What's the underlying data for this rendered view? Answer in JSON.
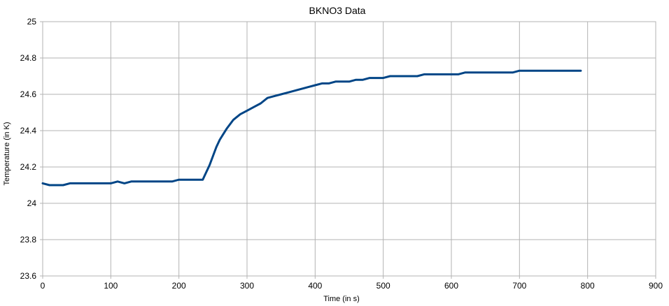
{
  "chart_data": {
    "type": "line",
    "title": "BKNO3 Data",
    "xlabel": "Time (in s)",
    "ylabel": "Temperature (in K)",
    "xlim": [
      0,
      900
    ],
    "ylim": [
      23.6,
      25
    ],
    "xticks": [
      0,
      100,
      200,
      300,
      400,
      500,
      600,
      700,
      800,
      900
    ],
    "yticks": [
      23.6,
      23.8,
      24,
      24.2,
      24.4,
      24.6,
      24.8,
      25
    ],
    "ytick_labels": [
      "23.6",
      "23.8",
      "24",
      "24.2",
      "24.4",
      "24.6",
      "24.8",
      "25"
    ],
    "grid": true,
    "legend": "none",
    "line_color": "#004586",
    "series": [
      {
        "x": [
          0,
          10,
          20,
          30,
          40,
          50,
          60,
          70,
          80,
          90,
          100,
          110,
          120,
          130,
          140,
          150,
          160,
          170,
          180,
          190,
          200,
          210,
          220,
          230,
          235,
          240,
          245,
          250,
          255,
          260,
          265,
          270,
          280,
          290,
          300,
          310,
          320,
          330,
          340,
          350,
          360,
          370,
          380,
          390,
          400,
          410,
          420,
          430,
          440,
          450,
          460,
          470,
          480,
          490,
          500,
          510,
          520,
          530,
          540,
          550,
          560,
          570,
          580,
          590,
          600,
          610,
          620,
          630,
          640,
          650,
          660,
          670,
          680,
          690,
          700,
          710,
          720,
          730,
          740,
          750,
          760,
          770,
          780,
          790
        ],
        "y": [
          24.11,
          24.1,
          24.1,
          24.1,
          24.11,
          24.11,
          24.11,
          24.11,
          24.11,
          24.11,
          24.11,
          24.12,
          24.11,
          24.12,
          24.12,
          24.12,
          24.12,
          24.12,
          24.12,
          24.12,
          24.13,
          24.13,
          24.13,
          24.13,
          24.13,
          24.17,
          24.21,
          24.26,
          24.31,
          24.35,
          24.38,
          24.41,
          24.46,
          24.49,
          24.51,
          24.53,
          24.55,
          24.58,
          24.59,
          24.6,
          24.61,
          24.62,
          24.63,
          24.64,
          24.65,
          24.66,
          24.66,
          24.67,
          24.67,
          24.67,
          24.68,
          24.68,
          24.69,
          24.69,
          24.69,
          24.7,
          24.7,
          24.7,
          24.7,
          24.7,
          24.71,
          24.71,
          24.71,
          24.71,
          24.71,
          24.71,
          24.72,
          24.72,
          24.72,
          24.72,
          24.72,
          24.72,
          24.72,
          24.72,
          24.73,
          24.73,
          24.73,
          24.73,
          24.73,
          24.73,
          24.73,
          24.73,
          24.73,
          24.73
        ]
      }
    ]
  }
}
